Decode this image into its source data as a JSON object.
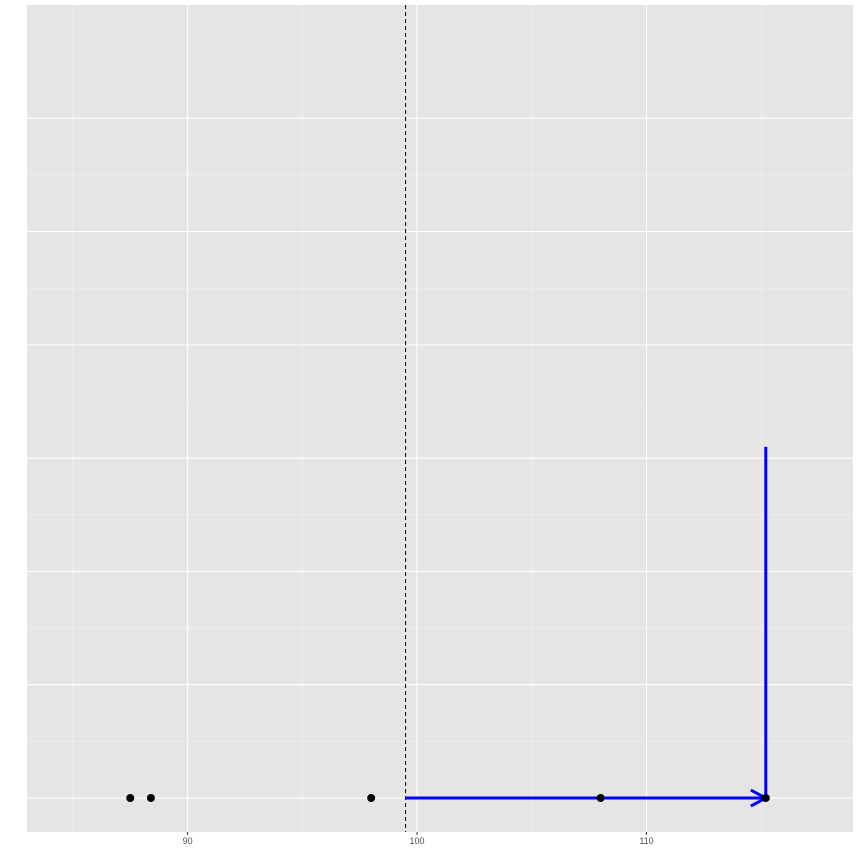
{
  "chart_data": {
    "type": "scatter",
    "title": "",
    "xlabel": "",
    "ylabel": "",
    "grid": true,
    "legend": "none",
    "xlim": [
      83.0,
      119.0
    ],
    "ylim": [
      -0.3,
      7.0
    ],
    "x_ticks": [
      90,
      100,
      110
    ],
    "x_tick_labels": [
      "90",
      "100",
      "110"
    ],
    "x_minor_ticks": [
      85,
      95,
      105,
      115
    ],
    "y_gridlines": [
      0,
      1,
      2,
      3,
      4,
      5,
      6
    ],
    "points": [
      {
        "x": 87.5,
        "y": 0
      },
      {
        "x": 88.4,
        "y": 0
      },
      {
        "x": 98.0,
        "y": 0
      },
      {
        "x": 108.0,
        "y": 0
      },
      {
        "x": 115.2,
        "y": 0
      }
    ],
    "vline": {
      "x": 99.5,
      "style": "dashed",
      "color": "#000000"
    },
    "arrow_horizontal": {
      "x_start": 99.5,
      "x_end": 115.2,
      "y": 0,
      "color": "#0000ff"
    },
    "vertical_segment": {
      "x": 115.2,
      "y_start": 0,
      "y_end": 3.1,
      "color": "#0000ff"
    },
    "colors": {
      "panel_background": "#e5e5e5",
      "grid_major": "#ffffff",
      "grid_minor": "#f2f2f2",
      "points": "#000000"
    }
  }
}
